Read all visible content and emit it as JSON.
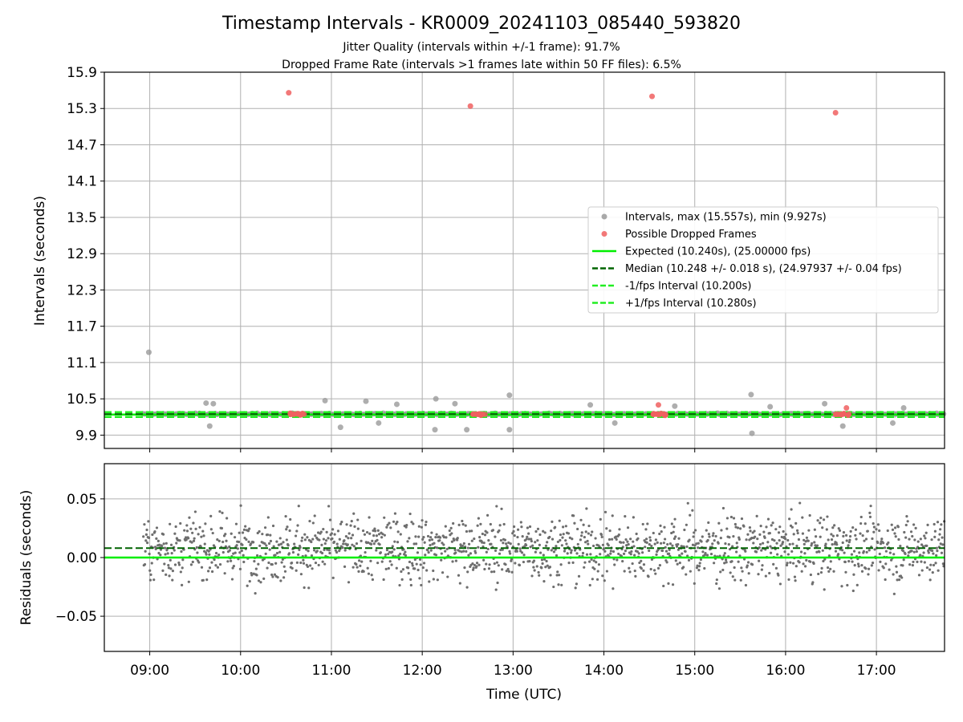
{
  "chart_data": [
    {
      "type": "scatter",
      "title": "Timestamp Intervals - KR0009_20241103_085440_593820",
      "subtitle_lines": [
        "Jitter Quality (intervals within +/-1 frame): 91.7%",
        "Dropped Frame Rate (intervals >1 frames late within 50 FF files): 6.5%"
      ],
      "ylabel": "Intervals (seconds)",
      "ylim": [
        9.68,
        15.9
      ],
      "yticks": [
        "9.9",
        "10.5",
        "11.1",
        "11.7",
        "12.3",
        "12.9",
        "13.5",
        "14.1",
        "14.7",
        "15.3",
        "15.9"
      ],
      "xlim_hours": [
        8.5,
        17.75
      ],
      "grid": true,
      "legend_position": "center-right",
      "legend": [
        {
          "label": "Intervals, max (15.557s), min (9.927s)",
          "kind": "dot",
          "color": "#9a9a9a"
        },
        {
          "label": "Possible Dropped Frames",
          "kind": "dot",
          "color": "#f06060"
        },
        {
          "label": "Expected (10.240s), (25.00000 fps)",
          "kind": "solid",
          "color": "#00ee00"
        },
        {
          "label": "Median (10.248 +/- 0.018 s), (24.97937 +/- 0.04 fps)",
          "kind": "dashed",
          "color": "#006400"
        },
        {
          "label": "-1/fps Interval (10.200s)",
          "kind": "dashed",
          "color": "#22ee22"
        },
        {
          "label": "+1/fps Interval (10.280s)",
          "kind": "dashed",
          "color": "#22ee22"
        }
      ],
      "reference_lines": {
        "expected": 10.24,
        "median": 10.248,
        "minus_one_fps": 10.2,
        "plus_one_fps": 10.28
      },
      "outliers": [
        {
          "x": 8.99,
          "y": 11.27
        },
        {
          "x": 9.62,
          "y": 10.43
        },
        {
          "x": 9.66,
          "y": 10.05
        },
        {
          "x": 9.7,
          "y": 10.42
        },
        {
          "x": 10.93,
          "y": 10.47
        },
        {
          "x": 11.1,
          "y": 10.03
        },
        {
          "x": 11.38,
          "y": 10.46
        },
        {
          "x": 11.52,
          "y": 10.1
        },
        {
          "x": 11.72,
          "y": 10.41
        },
        {
          "x": 12.15,
          "y": 10.5
        },
        {
          "x": 12.14,
          "y": 9.99
        },
        {
          "x": 12.36,
          "y": 10.42
        },
        {
          "x": 12.49,
          "y": 9.99
        },
        {
          "x": 12.96,
          "y": 10.56
        },
        {
          "x": 12.96,
          "y": 9.99
        },
        {
          "x": 13.85,
          "y": 10.4
        },
        {
          "x": 14.12,
          "y": 10.1
        },
        {
          "x": 14.78,
          "y": 10.38
        },
        {
          "x": 15.62,
          "y": 10.57
        },
        {
          "x": 15.63,
          "y": 9.93
        },
        {
          "x": 15.83,
          "y": 10.37
        },
        {
          "x": 16.43,
          "y": 10.42
        },
        {
          "x": 16.63,
          "y": 10.05
        },
        {
          "x": 17.18,
          "y": 10.1
        },
        {
          "x": 17.3,
          "y": 10.35
        }
      ],
      "dropped_frames": [
        {
          "x": 10.53,
          "y": 15.56
        },
        {
          "x": 12.53,
          "y": 15.34
        },
        {
          "x": 14.53,
          "y": 15.5
        },
        {
          "x": 16.55,
          "y": 15.23
        },
        {
          "x": 14.6,
          "y": 10.4
        },
        {
          "x": 16.67,
          "y": 10.35
        }
      ],
      "dropped_frame_clusters_hours": [
        10.62,
        12.62,
        14.62,
        16.62
      ]
    },
    {
      "type": "scatter",
      "xlabel": "Time (UTC)",
      "ylabel": "Residuals (seconds)",
      "ylim": [
        -0.08,
        0.08
      ],
      "yticks": [
        "−0.05",
        "0.00",
        "0.05"
      ],
      "xticks": [
        "09:00",
        "10:00",
        "11:00",
        "12:00",
        "13:00",
        "14:00",
        "15:00",
        "16:00",
        "17:00"
      ],
      "xlim_hours": [
        8.5,
        17.75
      ],
      "reference_lines": {
        "expected": 0.0,
        "median": 0.008
      },
      "residual_spread_seconds": 0.02,
      "grid": true
    }
  ],
  "colors": {
    "interval_dot": "#9a9a9a",
    "dropped_dot": "#f06060",
    "expected_line": "#00ee00",
    "median_line": "#006400",
    "fps_band_line": "#22ee22",
    "residual_dot": "#6e6e6e",
    "grid": "#b0b0b0"
  }
}
